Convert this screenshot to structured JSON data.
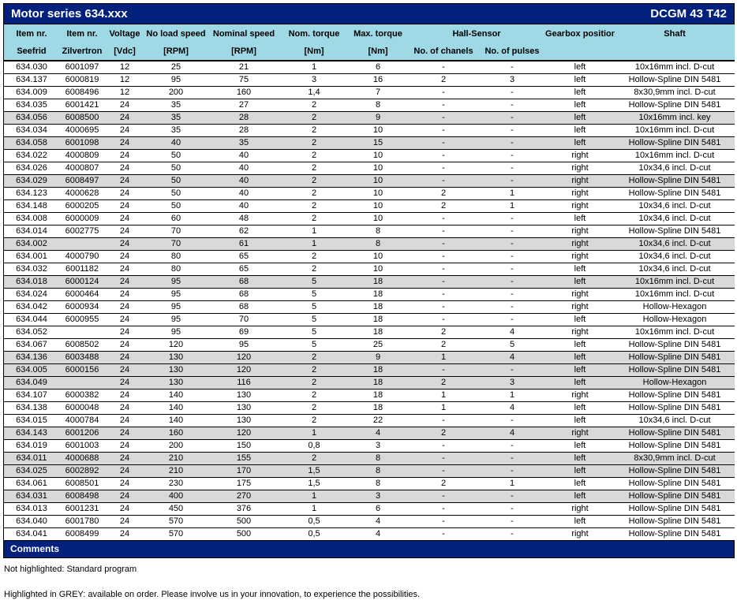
{
  "title_bar": {
    "title": "Motor series 634.xxx",
    "model": "DCGM 43 T42"
  },
  "colors": {
    "navy_bar": "#02217d",
    "header_blue": "#a0d9e6",
    "grey_row": "#d9d9d9",
    "text": "#000000"
  },
  "header": {
    "row1": [
      "Item nr.",
      "Item nr.",
      "Voltage",
      "No load speed",
      "Nominal speed",
      "Nom. torque",
      "Max. torque",
      "Hall-Sensor",
      "Gearbox position",
      "Shaft"
    ],
    "row2": [
      "Seefrid",
      "Zilvertron",
      "[Vdc]",
      "[RPM]",
      "[RPM]",
      "[Nm]",
      "[Nm]",
      "No. of chanels",
      "No. of pulses"
    ]
  },
  "table": {
    "rows": [
      {
        "grey": false,
        "cells": [
          "634.030",
          "6001097",
          "12",
          "25",
          "21",
          "1",
          "6",
          "-",
          "-",
          "left",
          "10x16mm incl. D-cut"
        ]
      },
      {
        "grey": false,
        "cells": [
          "634.137",
          "6000819",
          "12",
          "95",
          "75",
          "3",
          "16",
          "2",
          "3",
          "left",
          "Hollow-Spline DIN 5481"
        ]
      },
      {
        "grey": false,
        "cells": [
          "634.009",
          "6008496",
          "12",
          "200",
          "160",
          "1,4",
          "7",
          "-",
          "-",
          "left",
          "8x30,9mm incl. D-cut"
        ]
      },
      {
        "grey": false,
        "cells": [
          "634.035",
          "6001421",
          "24",
          "35",
          "27",
          "2",
          "8",
          "-",
          "-",
          "left",
          "Hollow-Spline DIN 5481"
        ]
      },
      {
        "grey": true,
        "cells": [
          "634.056",
          "6008500",
          "24",
          "35",
          "28",
          "2",
          "9",
          "-",
          "-",
          "left",
          "10x16mm incl. key"
        ]
      },
      {
        "grey": false,
        "cells": [
          "634.034",
          "4000695",
          "24",
          "35",
          "28",
          "2",
          "10",
          "-",
          "-",
          "left",
          "10x16mm incl. D-cut"
        ]
      },
      {
        "grey": true,
        "cells": [
          "634.058",
          "6001098",
          "24",
          "40",
          "35",
          "2",
          "15",
          "-",
          "-",
          "left",
          "Hollow-Spline DIN 5481"
        ]
      },
      {
        "grey": false,
        "cells": [
          "634.022",
          "4000809",
          "24",
          "50",
          "40",
          "2",
          "10",
          "-",
          "-",
          "right",
          "10x16mm incl. D-cut"
        ]
      },
      {
        "grey": false,
        "cells": [
          "634.026",
          "4000807",
          "24",
          "50",
          "40",
          "2",
          "10",
          "-",
          "-",
          "right",
          "10x34,6 incl. D-cut"
        ]
      },
      {
        "grey": true,
        "cells": [
          "634.029",
          "6008497",
          "24",
          "50",
          "40",
          "2",
          "10",
          "-",
          "-",
          "right",
          "Hollow-Spline DIN 5481"
        ]
      },
      {
        "grey": false,
        "cells": [
          "634.123",
          "4000628",
          "24",
          "50",
          "40",
          "2",
          "10",
          "2",
          "1",
          "right",
          "Hollow-Spline DIN 5481"
        ]
      },
      {
        "grey": false,
        "cells": [
          "634.148",
          "6000205",
          "24",
          "50",
          "40",
          "2",
          "10",
          "2",
          "1",
          "right",
          "10x34,6 incl. D-cut"
        ]
      },
      {
        "grey": false,
        "cells": [
          "634.008",
          "6000009",
          "24",
          "60",
          "48",
          "2",
          "10",
          "-",
          "-",
          "left",
          "10x34,6 incl. D-cut"
        ]
      },
      {
        "grey": false,
        "cells": [
          "634.014",
          "6002775",
          "24",
          "70",
          "62",
          "1",
          "8",
          "-",
          "-",
          "right",
          "Hollow-Spline DIN 5481"
        ]
      },
      {
        "grey": true,
        "cells": [
          "634.002",
          "",
          "24",
          "70",
          "61",
          "1",
          "8",
          "-",
          "-",
          "right",
          "10x34,6 incl. D-cut"
        ]
      },
      {
        "grey": false,
        "cells": [
          "634.001",
          "4000790",
          "24",
          "80",
          "65",
          "2",
          "10",
          "-",
          "-",
          "right",
          "10x34,6 incl. D-cut"
        ]
      },
      {
        "grey": false,
        "cells": [
          "634.032",
          "6001182",
          "24",
          "80",
          "65",
          "2",
          "10",
          "-",
          "-",
          "left",
          "10x34,6 incl. D-cut"
        ]
      },
      {
        "grey": true,
        "cells": [
          "634.018",
          "6000124",
          "24",
          "95",
          "68",
          "5",
          "18",
          "-",
          "-",
          "left",
          "10x16mm incl. D-cut"
        ]
      },
      {
        "grey": false,
        "cells": [
          "634.024",
          "6000464",
          "24",
          "95",
          "68",
          "5",
          "18",
          "-",
          "-",
          "right",
          "10x16mm incl. D-cut"
        ]
      },
      {
        "grey": false,
        "cells": [
          "634.042",
          "6000934",
          "24",
          "95",
          "68",
          "5",
          "18",
          "-",
          "-",
          "right",
          "Hollow-Hexagon"
        ]
      },
      {
        "grey": false,
        "cells": [
          "634.044",
          "6000955",
          "24",
          "95",
          "70",
          "5",
          "18",
          "-",
          "-",
          "left",
          "Hollow-Hexagon"
        ]
      },
      {
        "grey": false,
        "cells": [
          "634.052",
          "",
          "24",
          "95",
          "69",
          "5",
          "18",
          "2",
          "4",
          "right",
          "10x16mm incl. D-cut"
        ]
      },
      {
        "grey": false,
        "cells": [
          "634.067",
          "6008502",
          "24",
          "120",
          "95",
          "5",
          "25",
          "2",
          "5",
          "left",
          "Hollow-Spline DIN 5481"
        ]
      },
      {
        "grey": true,
        "cells": [
          "634.136",
          "6003488",
          "24",
          "130",
          "120",
          "2",
          "9",
          "1",
          "4",
          "left",
          "Hollow-Spline DIN 5481"
        ]
      },
      {
        "grey": true,
        "cells": [
          "634.005",
          "6000156",
          "24",
          "130",
          "120",
          "2",
          "18",
          "-",
          "-",
          "left",
          "Hollow-Spline DIN 5481"
        ]
      },
      {
        "grey": true,
        "cells": [
          "634.049",
          "",
          "24",
          "130",
          "116",
          "2",
          "18",
          "2",
          "3",
          "left",
          "Hollow-Hexagon"
        ]
      },
      {
        "grey": false,
        "cells": [
          "634.107",
          "6000382",
          "24",
          "140",
          "130",
          "2",
          "18",
          "1",
          "1",
          "right",
          "Hollow-Spline DIN 5481"
        ]
      },
      {
        "grey": false,
        "cells": [
          "634.138",
          "6000048",
          "24",
          "140",
          "130",
          "2",
          "18",
          "1",
          "4",
          "left",
          "Hollow-Spline DIN 5481"
        ]
      },
      {
        "grey": false,
        "cells": [
          "634.015",
          "4000784",
          "24",
          "140",
          "130",
          "2",
          "22",
          "-",
          "-",
          "left",
          "10x34,6 incl. D-cut"
        ]
      },
      {
        "grey": true,
        "cells": [
          "634.143",
          "6001206",
          "24",
          "160",
          "120",
          "1",
          "4",
          "2",
          "4",
          "right",
          "Hollow-Spline DIN 5481"
        ]
      },
      {
        "grey": false,
        "cells": [
          "634.019",
          "6001003",
          "24",
          "200",
          "150",
          "0,8",
          "3",
          "-",
          "-",
          "left",
          "Hollow-Spline DIN 5481"
        ]
      },
      {
        "grey": true,
        "cells": [
          "634.011",
          "4000688",
          "24",
          "210",
          "155",
          "2",
          "8",
          "-",
          "-",
          "left",
          "8x30,9mm incl. D-cut"
        ]
      },
      {
        "grey": true,
        "cells": [
          "634.025",
          "6002892",
          "24",
          "210",
          "170",
          "1,5",
          "8",
          "-",
          "-",
          "left",
          "Hollow-Spline DIN 5481"
        ]
      },
      {
        "grey": false,
        "cells": [
          "634.061",
          "6008501",
          "24",
          "230",
          "175",
          "1,5",
          "8",
          "2",
          "1",
          "left",
          "Hollow-Spline DIN 5481"
        ]
      },
      {
        "grey": true,
        "cells": [
          "634.031",
          "6008498",
          "24",
          "400",
          "270",
          "1",
          "3",
          "-",
          "-",
          "left",
          "Hollow-Spline DIN 5481"
        ]
      },
      {
        "grey": false,
        "cells": [
          "634.013",
          "6001231",
          "24",
          "450",
          "376",
          "1",
          "6",
          "-",
          "-",
          "right",
          "Hollow-Spline DIN 5481"
        ]
      },
      {
        "grey": false,
        "cells": [
          "634.040",
          "6001780",
          "24",
          "570",
          "500",
          "0,5",
          "4",
          "-",
          "-",
          "left",
          "Hollow-Spline DIN 5481"
        ]
      },
      {
        "grey": false,
        "cells": [
          "634.041",
          "6008499",
          "24",
          "570",
          "500",
          "0,5",
          "4",
          "-",
          "-",
          "right",
          "Hollow-Spline DIN 5481"
        ]
      }
    ]
  },
  "comments": {
    "label": "Comments",
    "note1": "Not highlighted: Standard program",
    "note2": "Highlighted in GREY: available on order. Please involve us in your innovation, to experience the possibilities."
  }
}
